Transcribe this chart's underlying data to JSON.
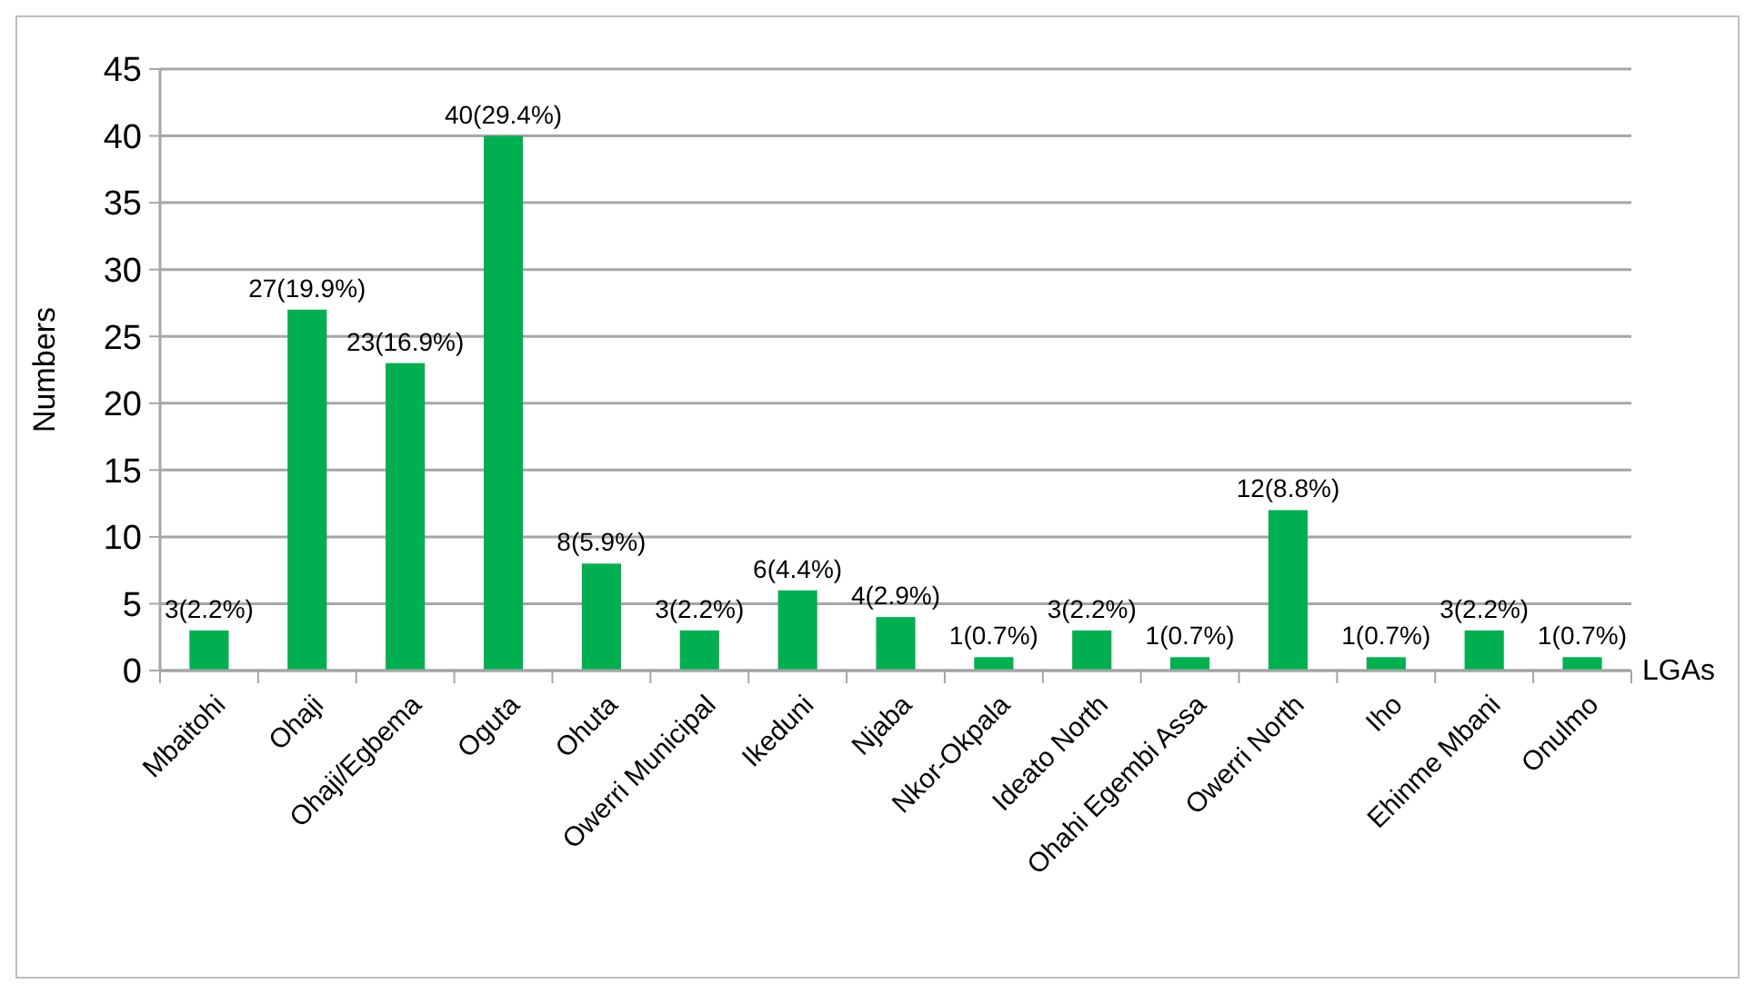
{
  "chart_data": {
    "type": "bar",
    "xlabel": "LGAs",
    "ylabel": "Numbers",
    "categories": [
      "Mbaitohi",
      "Ohaji",
      "Ohaji/Egbema",
      "Oguta",
      "Ohuta",
      "Owerri Municipal",
      "Ikeduni",
      "Njaba",
      "Nkor-Okpala",
      "Ideato North",
      "Ohahi Egembi Assa",
      "Owerri North",
      "Iho",
      "Ehinme Mbani",
      "Onulmo"
    ],
    "values": [
      3,
      27,
      23,
      40,
      8,
      3,
      6,
      4,
      1,
      3,
      1,
      12,
      1,
      3,
      1
    ],
    "value_labels": [
      "3(2.2%)",
      "27(19.9%)",
      "23(16.9%)",
      "40(29.4%)",
      "8(5.9%)",
      "3(2.2%)",
      "6(4.4%)",
      "4(2.9%)",
      "1(0.7%)",
      "3(2.2%)",
      "1(0.7%)",
      "12(8.8%)",
      "1(0.7%)",
      "3(2.2%)",
      "1(0.7%)"
    ],
    "color": "#00b050",
    "ylim": [
      0,
      45
    ],
    "yticks": [
      0,
      5,
      10,
      15,
      20,
      25,
      30,
      35,
      40,
      45
    ],
    "grid": "y"
  }
}
